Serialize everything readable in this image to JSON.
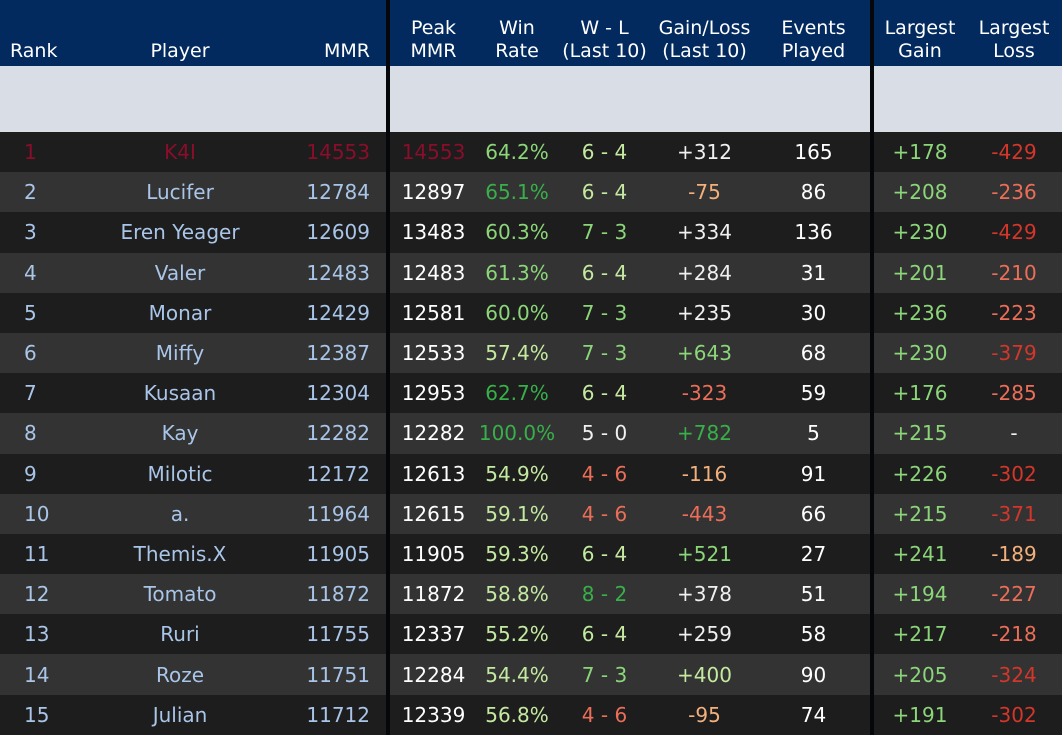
{
  "header": {
    "rank": "Rank",
    "player": "Player",
    "mmr": "MMR",
    "peak_l1": "Peak",
    "peak_l2": "MMR",
    "win_l1": "Win",
    "win_l2": "Rate",
    "wl_l1": "W - L",
    "wl_l2": "(Last 10)",
    "gl_l1": "Gain/Loss",
    "gl_l2": "(Last 10)",
    "ev_l1": "Events",
    "ev_l2": "Played",
    "lg_l1": "Largest",
    "lg_l2": "Gain",
    "ll_l1": "Largest",
    "ll_l2": "Loss"
  },
  "colors": {
    "header_bg": "#032a5f",
    "row_dark": "#1d1d1d",
    "row_light": "#333333",
    "name_blue": "#a9c5e8",
    "top_rank": "#8a0d2a",
    "pos_dark": "#38b04a",
    "pos_light": "#8cd67a",
    "pos_pale": "#c4e9a0",
    "neg_orange": "#f3b07c",
    "neg_salmon": "#ec6e58",
    "neg_red": "#d4362a"
  },
  "rows": [
    {
      "rank": "1",
      "player": "K4I",
      "mmr": "14553",
      "peak": "14553",
      "win": "64.2%",
      "win_c": "pos-light",
      "wl": "6 - 4",
      "wl_c": "pos-pale",
      "gl": "+312",
      "gl_c": "neutral",
      "ev": "165",
      "lg": "+178",
      "lg_c": "pos-light",
      "ll": "-429",
      "ll_c": "neg-red"
    },
    {
      "rank": "2",
      "player": "Lucifer",
      "mmr": "12784",
      "peak": "12897",
      "win": "65.1%",
      "win_c": "pos-dark",
      "wl": "6 - 4",
      "wl_c": "pos-pale",
      "gl": "-75",
      "gl_c": "neg-orange",
      "ev": "86",
      "lg": "+208",
      "lg_c": "pos-light",
      "ll": "-236",
      "ll_c": "neg-salmon"
    },
    {
      "rank": "3",
      "player": "Eren Yeager",
      "mmr": "12609",
      "peak": "13483",
      "win": "60.3%",
      "win_c": "pos-light",
      "wl": "7 - 3",
      "wl_c": "pos-light",
      "gl": "+334",
      "gl_c": "neutral",
      "ev": "136",
      "lg": "+230",
      "lg_c": "pos-light",
      "ll": "-429",
      "ll_c": "neg-red"
    },
    {
      "rank": "4",
      "player": "Valer",
      "mmr": "12483",
      "peak": "12483",
      "win": "61.3%",
      "win_c": "pos-light",
      "wl": "6 - 4",
      "wl_c": "pos-pale",
      "gl": "+284",
      "gl_c": "neutral",
      "ev": "31",
      "lg": "+201",
      "lg_c": "pos-light",
      "ll": "-210",
      "ll_c": "neg-salmon"
    },
    {
      "rank": "5",
      "player": "Monar",
      "mmr": "12429",
      "peak": "12581",
      "win": "60.0%",
      "win_c": "pos-light",
      "wl": "7 - 3",
      "wl_c": "pos-light",
      "gl": "+235",
      "gl_c": "neutral",
      "ev": "30",
      "lg": "+236",
      "lg_c": "pos-light",
      "ll": "-223",
      "ll_c": "neg-salmon"
    },
    {
      "rank": "6",
      "player": "Miffy",
      "mmr": "12387",
      "peak": "12533",
      "win": "57.4%",
      "win_c": "pos-pale",
      "wl": "7 - 3",
      "wl_c": "pos-light",
      "gl": "+643",
      "gl_c": "pos-light",
      "ev": "68",
      "lg": "+230",
      "lg_c": "pos-light",
      "ll": "-379",
      "ll_c": "neg-red"
    },
    {
      "rank": "7",
      "player": "Kusaan",
      "mmr": "12304",
      "peak": "12953",
      "win": "62.7%",
      "win_c": "pos-dark",
      "wl": "6 - 4",
      "wl_c": "pos-pale",
      "gl": "-323",
      "gl_c": "neg-salmon",
      "ev": "59",
      "lg": "+176",
      "lg_c": "pos-light",
      "ll": "-285",
      "ll_c": "neg-salmon"
    },
    {
      "rank": "8",
      "player": "Kay",
      "mmr": "12282",
      "peak": "12282",
      "win": "100.0%",
      "win_c": "pos-dark",
      "wl": "5 - 0",
      "wl_c": "neutral",
      "gl": "+782",
      "gl_c": "pos-dark",
      "ev": "5",
      "lg": "+215",
      "lg_c": "pos-light",
      "ll": "-",
      "ll_c": "neutral"
    },
    {
      "rank": "9",
      "player": "Milotic",
      "mmr": "12172",
      "peak": "12613",
      "win": "54.9%",
      "win_c": "pos-pale",
      "wl": "4 - 6",
      "wl_c": "neg-salmon",
      "gl": "-116",
      "gl_c": "neg-orange",
      "ev": "91",
      "lg": "+226",
      "lg_c": "pos-light",
      "ll": "-302",
      "ll_c": "neg-red"
    },
    {
      "rank": "10",
      "player": "a.",
      "mmr": "11964",
      "peak": "12615",
      "win": "59.1%",
      "win_c": "pos-pale",
      "wl": "4 - 6",
      "wl_c": "neg-salmon",
      "gl": "-443",
      "gl_c": "neg-salmon",
      "ev": "66",
      "lg": "+215",
      "lg_c": "pos-light",
      "ll": "-371",
      "ll_c": "neg-red"
    },
    {
      "rank": "11",
      "player": "Themis.X",
      "mmr": "11905",
      "peak": "11905",
      "win": "59.3%",
      "win_c": "pos-pale",
      "wl": "6 - 4",
      "wl_c": "pos-pale",
      "gl": "+521",
      "gl_c": "pos-light",
      "ev": "27",
      "lg": "+241",
      "lg_c": "pos-light",
      "ll": "-189",
      "ll_c": "neg-orange"
    },
    {
      "rank": "12",
      "player": "Tomato",
      "mmr": "11872",
      "peak": "11872",
      "win": "58.8%",
      "win_c": "pos-pale",
      "wl": "8 - 2",
      "wl_c": "pos-dark",
      "gl": "+378",
      "gl_c": "neutral",
      "ev": "51",
      "lg": "+194",
      "lg_c": "pos-light",
      "ll": "-227",
      "ll_c": "neg-salmon"
    },
    {
      "rank": "13",
      "player": "Ruri",
      "mmr": "11755",
      "peak": "12337",
      "win": "55.2%",
      "win_c": "pos-pale",
      "wl": "6 - 4",
      "wl_c": "pos-pale",
      "gl": "+259",
      "gl_c": "neutral",
      "ev": "58",
      "lg": "+217",
      "lg_c": "pos-light",
      "ll": "-218",
      "ll_c": "neg-salmon"
    },
    {
      "rank": "14",
      "player": "Roze",
      "mmr": "11751",
      "peak": "12284",
      "win": "54.4%",
      "win_c": "pos-pale",
      "wl": "7 - 3",
      "wl_c": "pos-light",
      "gl": "+400",
      "gl_c": "pos-pale",
      "ev": "90",
      "lg": "+205",
      "lg_c": "pos-light",
      "ll": "-324",
      "ll_c": "neg-red"
    },
    {
      "rank": "15",
      "player": "Julian",
      "mmr": "11712",
      "peak": "12339",
      "win": "56.8%",
      "win_c": "pos-pale",
      "wl": "4 - 6",
      "wl_c": "neg-salmon",
      "gl": "-95",
      "gl_c": "neg-orange",
      "ev": "74",
      "lg": "+191",
      "lg_c": "pos-light",
      "ll": "-302",
      "ll_c": "neg-red"
    }
  ]
}
